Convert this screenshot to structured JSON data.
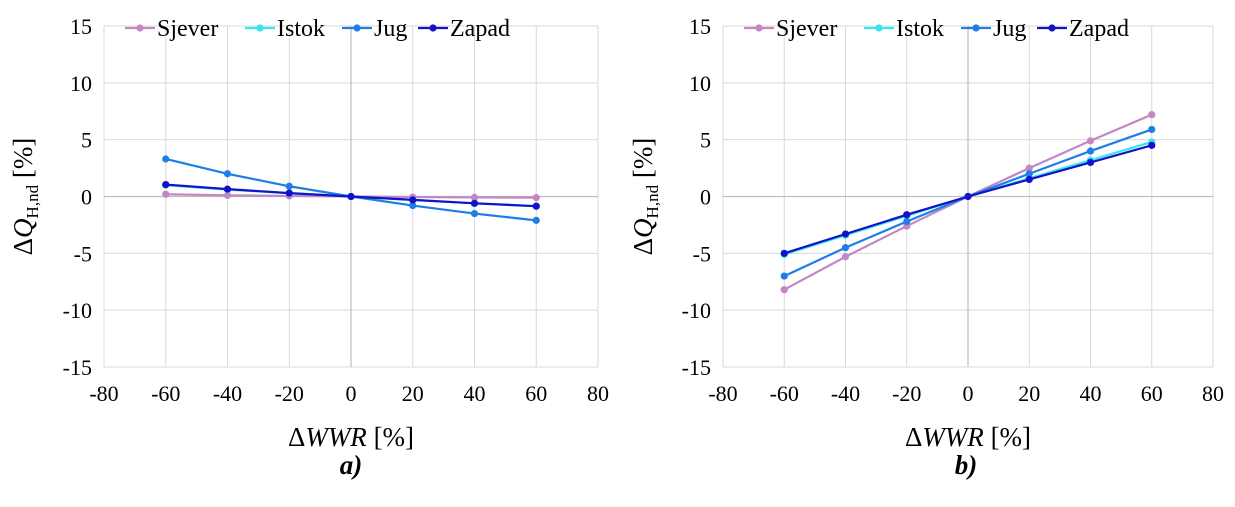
{
  "chart_data": [
    {
      "type": "line",
      "panel_label": "a)",
      "xlabel": {
        "prefix": "Δ",
        "var": "WWR",
        "unit": " [%]"
      },
      "ylabel": {
        "prefix": "Δ",
        "var": "Q",
        "sub": "H,nd",
        "unit": " [%]"
      },
      "xlim": [
        -80,
        80
      ],
      "ylim": [
        -15,
        15
      ],
      "xticks": [
        -80,
        -60,
        -40,
        -20,
        0,
        20,
        40,
        60,
        80
      ],
      "yticks": [
        -15,
        -10,
        -5,
        0,
        5,
        10,
        15
      ],
      "grid": true,
      "legend_position": "top",
      "x": [
        -60,
        -40,
        -20,
        0,
        20,
        40,
        60
      ],
      "series": [
        {
          "name": "Sjever",
          "color": "#c387c3",
          "values": [
            0.2,
            0.1,
            0.05,
            0,
            -0.05,
            -0.08,
            -0.1
          ]
        },
        {
          "name": "Istok",
          "color": "#33e6f0",
          "values": [
            1.0,
            0.6,
            0.3,
            0,
            -0.3,
            -0.6,
            -0.85
          ]
        },
        {
          "name": "Jug",
          "color": "#1f7ee6",
          "values": [
            3.3,
            2.0,
            0.9,
            0,
            -0.8,
            -1.5,
            -2.1
          ]
        },
        {
          "name": "Zapad",
          "color": "#1212c8",
          "values": [
            1.05,
            0.65,
            0.3,
            0,
            -0.3,
            -0.6,
            -0.85
          ]
        }
      ]
    },
    {
      "type": "line",
      "panel_label": "b)",
      "xlabel": {
        "prefix": "Δ",
        "var": "WWR",
        "unit": " [%]"
      },
      "ylabel": {
        "prefix": "Δ",
        "var": "Q",
        "sub": "H,nd",
        "unit": " [%]"
      },
      "xlim": [
        -80,
        80
      ],
      "ylim": [
        -15,
        15
      ],
      "xticks": [
        -80,
        -60,
        -40,
        -20,
        0,
        20,
        40,
        60,
        80
      ],
      "yticks": [
        -15,
        -10,
        -5,
        0,
        5,
        10,
        15
      ],
      "grid": true,
      "legend_position": "top",
      "x": [
        -60,
        -40,
        -20,
        0,
        20,
        40,
        60
      ],
      "series": [
        {
          "name": "Sjever",
          "color": "#c387c3",
          "values": [
            -8.2,
            -5.3,
            -2.6,
            0,
            2.5,
            4.9,
            7.2
          ]
        },
        {
          "name": "Istok",
          "color": "#33e6f0",
          "values": [
            -5.1,
            -3.4,
            -1.7,
            0,
            1.6,
            3.2,
            4.8
          ]
        },
        {
          "name": "Jug",
          "color": "#1f7ee6",
          "values": [
            -7.0,
            -4.5,
            -2.2,
            0,
            2.0,
            4.0,
            5.9
          ]
        },
        {
          "name": "Zapad",
          "color": "#1212c8",
          "values": [
            -5.0,
            -3.3,
            -1.6,
            0,
            1.5,
            3.0,
            4.5
          ]
        }
      ]
    }
  ]
}
